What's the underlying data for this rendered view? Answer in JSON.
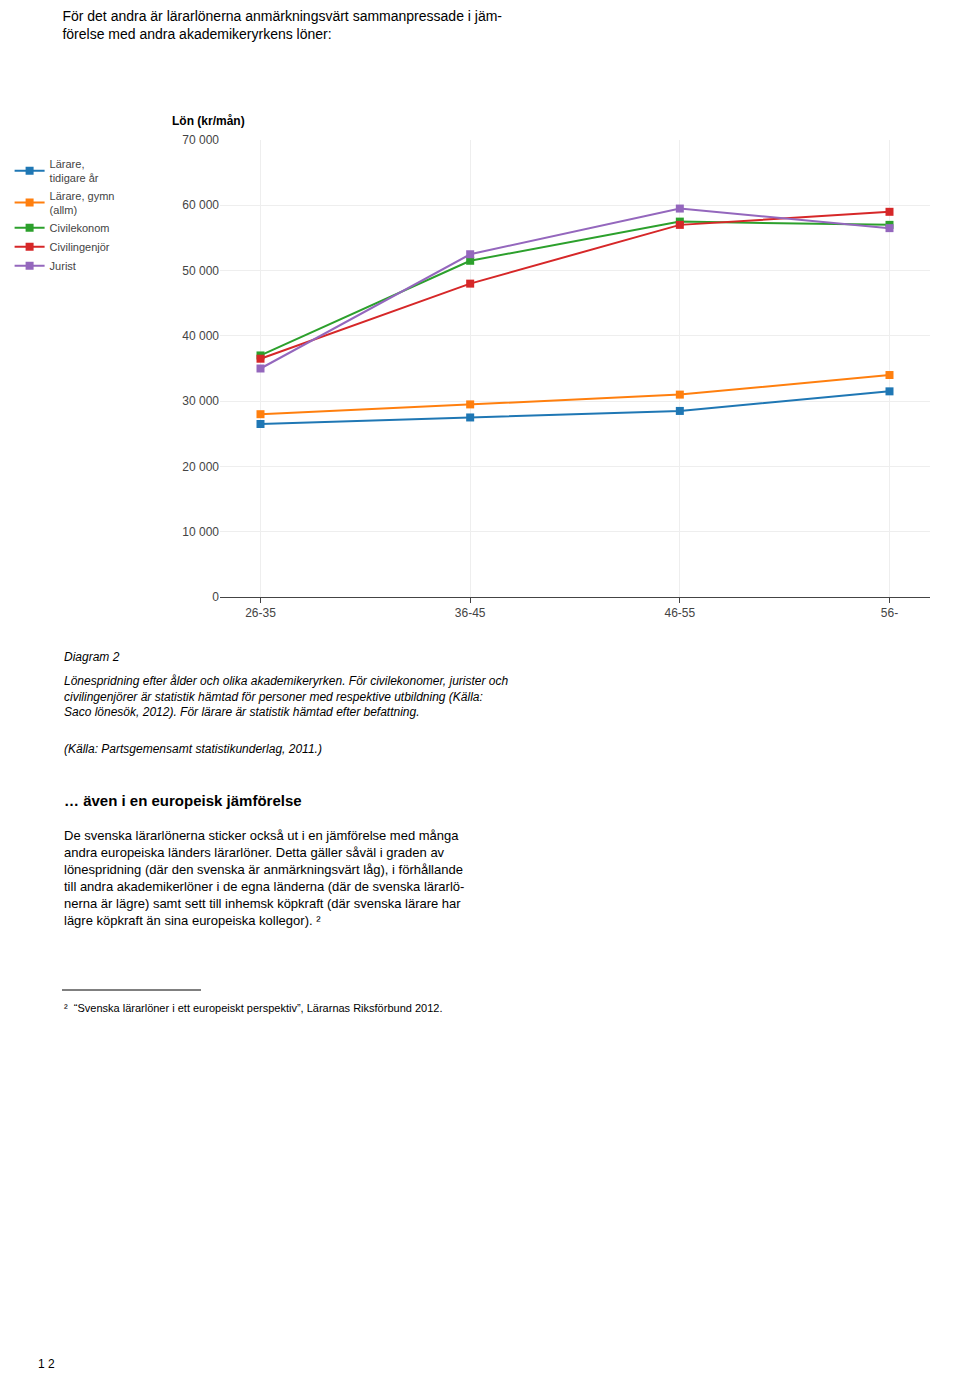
{
  "chart_data": {
    "type": "line",
    "title": "För det andra är lärarlönerna anmärkningsvärt sammanpressade i jäm-\nförelse med andra akademikeryrkens löner:",
    "y_label": "Lön (kr/mån)",
    "categories": [
      "26-35",
      "36-45",
      "46-55",
      "56-"
    ],
    "series": [
      {
        "name": "Lärare,\ntidigare år",
        "values": [
          26500,
          27500,
          28500,
          31500
        ]
      },
      {
        "name": "Lärare, gymn\n(allm)",
        "values": [
          28000,
          29500,
          31000,
          34000
        ]
      },
      {
        "name": "Civilekonom",
        "values": [
          37000,
          51500,
          57500,
          57000
        ]
      },
      {
        "name": "Civilingenjör",
        "values": [
          36500,
          48000,
          57000,
          59000
        ]
      },
      {
        "name": "Jurist",
        "values": [
          35000,
          52500,
          59500,
          56500
        ]
      }
    ],
    "marker": "square",
    "ylim": [
      0,
      70000
    ],
    "yticks": [
      0,
      {
        "value": 10000,
        "label": "10 000"
      },
      {
        "value": 20000,
        "label": "20 000"
      },
      {
        "value": 30000,
        "label": "30 000"
      },
      {
        "value": 40000,
        "label": "40 000"
      },
      {
        "value": 50000,
        "label": "50 000"
      },
      {
        "value": 60000,
        "label": "60 000"
      },
      {
        "value": 70000,
        "label": "70 000"
      }
    ],
    "grid": true,
    "legend": "left",
    "annotations": [
      "Diagram 2",
      "Lönespridning efter ålder och olika akademikeryrken. För civilekonomer, jurister och\ncivilingenjörer är statistik hämtad för personer med respektive utbildning (Källa:\nSaco lönesök, 2012). För lärare är statistik hämtad efter befattning.",
      "(Källa: Partsgemensamt statistikunderlag, 2011.)",
      "… även i en europeisk jämförelse",
      "De svenska lärarlönerna sticker också ut i en jämförelse med många\nandra europeiska länders lärarlöner. Detta gäller såväl i graden av\nlönespridning (där den svenska är anmärkningsvärt låg), i förhållande\ntill andra akademikerlöner i de egna länderna (där de svenska lärarlö-\nnerna är lägre) samt sett till inhemsk köpkraft (där svenska lärare har\nlägre köpkraft än sina europeiska kollegor). ²",
      "²  “Svenska lärarlöner i ett europeiskt perspektiv”, Lärarnas Riksförbund 2012.",
      "1 2"
    ]
  }
}
